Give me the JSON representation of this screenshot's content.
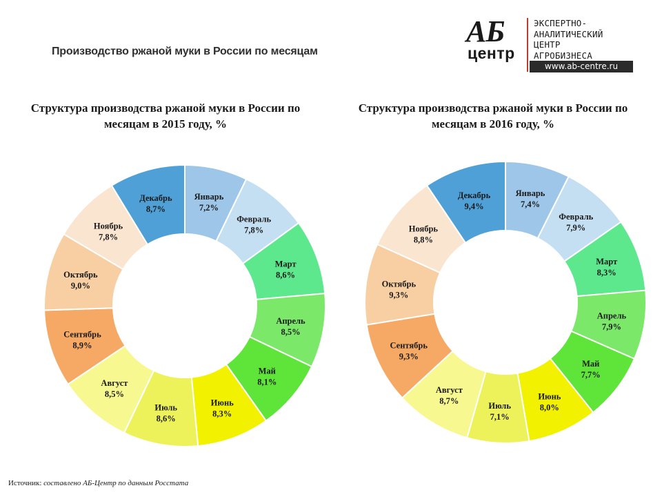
{
  "header": {
    "title": "Производство ржаной муки в России по месяцам"
  },
  "logo": {
    "mark_top": "АБ",
    "mark_bottom": "центр",
    "lines": [
      "ЭКСПЕРТНО-",
      "АНАЛИТИЧЕСКИЙ",
      "ЦЕНТР",
      "АГРОБИЗНЕСА"
    ],
    "url": "www.ab-centre.ru"
  },
  "colors": {
    "Январь": "#9dc6e8",
    "Февраль": "#c4dff2",
    "Март": "#5ee88e",
    "Апрель": "#7be86a",
    "Май": "#5fe43a",
    "Июнь": "#f2f200",
    "Июль": "#eef25a",
    "Август": "#f8f890",
    "Сентябрь": "#f5a964",
    "Октябрь": "#f8cfa2",
    "Ноябрь": "#fae5d0",
    "Декабрь": "#4ea0d6"
  },
  "chart_data": [
    {
      "type": "pie",
      "title": "Структура производства ржаной муки в России по месяцам в 2015 году, %",
      "categories": [
        "Январь",
        "Февраль",
        "Март",
        "Апрель",
        "Май",
        "Июнь",
        "Июль",
        "Август",
        "Сентябрь",
        "Октябрь",
        "Ноябрь",
        "Декабрь"
      ],
      "values": [
        7.2,
        7.8,
        8.6,
        8.5,
        8.1,
        8.3,
        8.6,
        8.5,
        8.9,
        9.0,
        7.8,
        8.7
      ],
      "value_labels": [
        "7,2%",
        "7,8%",
        "8,6%",
        "8,5%",
        "8,1%",
        "8,3%",
        "8,6%",
        "8,5%",
        "8,9%",
        "9,0%",
        "7,8%",
        "8,7%"
      ],
      "style": "donut"
    },
    {
      "type": "pie",
      "title": "Структура производства ржаной муки в России по месяцам в 2016 году, %",
      "categories": [
        "Январь",
        "Февраль",
        "Март",
        "Апрель",
        "Май",
        "Июнь",
        "Июль",
        "Август",
        "Сентябрь",
        "Октябрь",
        "Ноябрь",
        "Декабрь"
      ],
      "values": [
        7.4,
        7.9,
        8.3,
        7.9,
        7.7,
        8.0,
        7.1,
        8.7,
        9.3,
        9.3,
        8.8,
        9.4
      ],
      "value_labels": [
        "7,4%",
        "7,9%",
        "8,3%",
        "7,9%",
        "7,7%",
        "8,0%",
        "7,1%",
        "8,7%",
        "9,3%",
        "9,3%",
        "8,8%",
        "9,4%"
      ],
      "style": "donut"
    }
  ],
  "footer": {
    "source_label": "Источник:",
    "source_text": "составлено АБ-Центр по данным Росстата"
  }
}
